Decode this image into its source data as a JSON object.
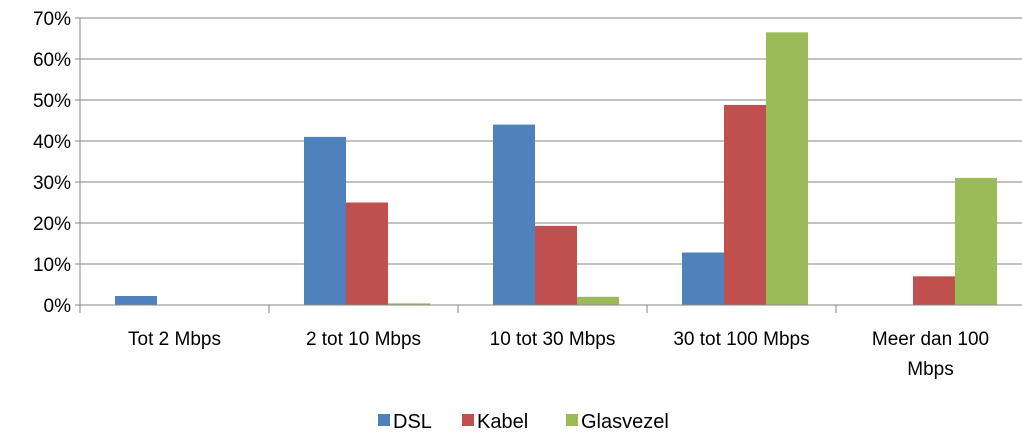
{
  "chart_data": {
    "type": "bar",
    "categories": [
      [
        "Tot 2 Mbps"
      ],
      [
        "2 tot 10 Mbps"
      ],
      [
        "10 tot 30 Mbps"
      ],
      [
        "30 tot 100 Mbps"
      ],
      [
        "Meer dan 100",
        "Mbps"
      ]
    ],
    "series": [
      {
        "name": "DSL",
        "color": "#4f81bd",
        "values": [
          2.2,
          41,
          44,
          12.8,
          0
        ]
      },
      {
        "name": "Kabel",
        "color": "#c0504d",
        "values": [
          0,
          25,
          19.3,
          48.8,
          7
        ]
      },
      {
        "name": "Glasvezel",
        "color": "#9bbb59",
        "values": [
          0,
          0.4,
          2,
          66.5,
          31
        ]
      }
    ],
    "y_ticks": [
      "0%",
      "10%",
      "20%",
      "30%",
      "40%",
      "50%",
      "60%",
      "70%"
    ],
    "ylim": [
      0,
      70
    ],
    "grid": true,
    "legend_position": "bottom"
  }
}
